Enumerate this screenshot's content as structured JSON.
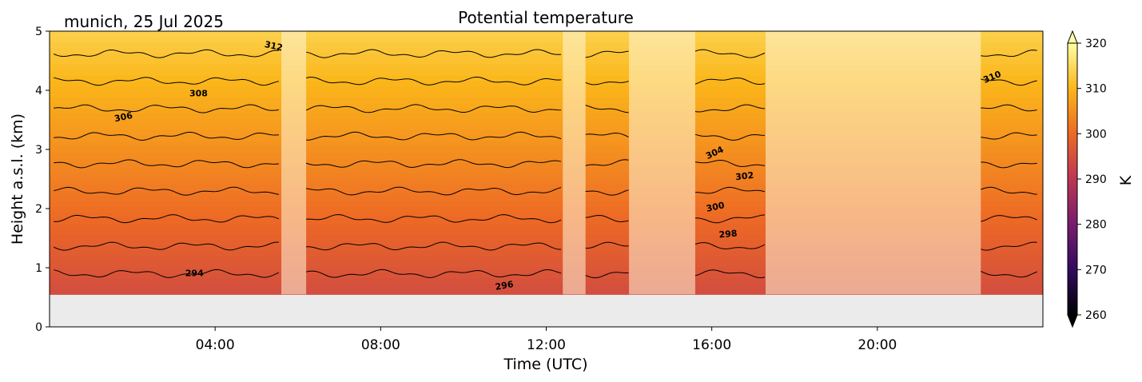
{
  "chart_data": {
    "type": "heatmap",
    "title": "Potential temperature",
    "subtitle": "munich, 25 Jul 2025",
    "xlabel": "Time (UTC)",
    "ylabel": "Height a.s.l. (km)",
    "xlim_hours": [
      0,
      24
    ],
    "ylim_km": [
      0,
      5
    ],
    "x_ticks": [
      {
        "hour": 4,
        "label": "04:00"
      },
      {
        "hour": 8,
        "label": "08:00"
      },
      {
        "hour": 12,
        "label": "12:00"
      },
      {
        "hour": 16,
        "label": "16:00"
      },
      {
        "hour": 20,
        "label": "20:00"
      }
    ],
    "y_ticks": [
      {
        "value": 0,
        "label": "0"
      },
      {
        "value": 1,
        "label": "1"
      },
      {
        "value": 2,
        "label": "2"
      },
      {
        "value": 3,
        "label": "3"
      },
      {
        "value": 4,
        "label": "4"
      },
      {
        "value": 5,
        "label": "5"
      }
    ],
    "data_bottom_km": 0.55,
    "colorbar": {
      "label": "K",
      "min": 260,
      "max": 320,
      "ticks": [
        {
          "value": 260,
          "label": "260"
        },
        {
          "value": 270,
          "label": "270"
        },
        {
          "value": 280,
          "label": "280"
        },
        {
          "value": 290,
          "label": "290"
        },
        {
          "value": 300,
          "label": "300"
        },
        {
          "value": 310,
          "label": "310"
        },
        {
          "value": 320,
          "label": "320"
        }
      ],
      "extend": "both",
      "colormap": "inferno",
      "stops": [
        "#000004",
        "#320a5e",
        "#781c6d",
        "#bc3754",
        "#ed6925",
        "#fbb61a",
        "#fcffa4"
      ]
    },
    "contour_levels_K": [
      294,
      296,
      298,
      300,
      302,
      304,
      306,
      308,
      310,
      312
    ],
    "theta_surface_K": 294.5,
    "theta_lapse_K_per_km": 4.3,
    "data_gaps_hours": [
      [
        5.6,
        6.2
      ],
      [
        12.4,
        12.95
      ],
      [
        14.0,
        15.6
      ],
      [
        17.3,
        22.5
      ]
    ],
    "contour_labels": [
      {
        "text": "294",
        "hour": 3.5,
        "km": 0.86,
        "angle": 0
      },
      {
        "text": "296",
        "hour": 11.0,
        "km": 0.65,
        "angle": -10
      },
      {
        "text": "298",
        "hour": 16.4,
        "km": 1.52,
        "angle": -5
      },
      {
        "text": "300",
        "hour": 16.1,
        "km": 1.98,
        "angle": -12
      },
      {
        "text": "302",
        "hour": 16.8,
        "km": 2.5,
        "angle": -6
      },
      {
        "text": "304",
        "hour": 16.1,
        "km": 2.9,
        "angle": -25
      },
      {
        "text": "306",
        "hour": 1.8,
        "km": 3.5,
        "angle": -12
      },
      {
        "text": "308",
        "hour": 3.6,
        "km": 3.9,
        "angle": 0
      },
      {
        "text": "310",
        "hour": 22.8,
        "km": 4.18,
        "angle": -22
      },
      {
        "text": "312",
        "hour": 5.4,
        "km": 4.7,
        "angle": 12
      }
    ]
  }
}
